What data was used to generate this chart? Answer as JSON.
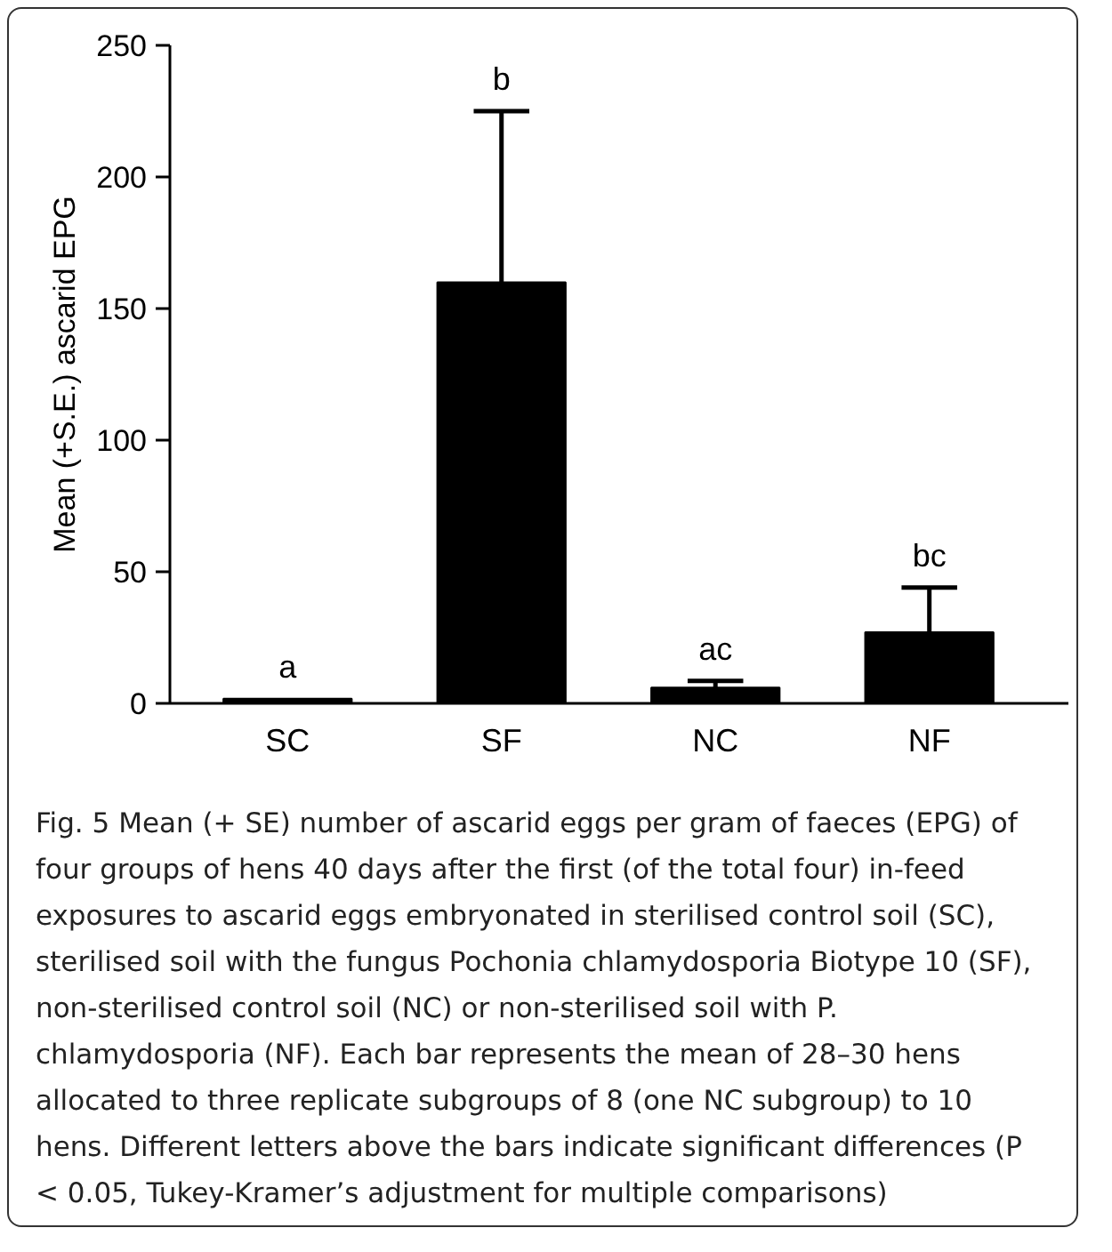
{
  "chart_data": {
    "type": "bar",
    "ylabel": "Mean (+S.E.) ascarid EPG",
    "categories": [
      "SC",
      "SF",
      "NC",
      "NF"
    ],
    "values": [
      1.8,
      160,
      6,
      27
    ],
    "errors": [
      null,
      [
        160,
        225
      ],
      [
        6,
        8.5
      ],
      [
        27,
        44
      ]
    ],
    "color": "#000000",
    "ylim": [
      0,
      250
    ],
    "yticks": [
      0,
      50,
      100,
      150,
      200,
      250
    ],
    "grid": false,
    "annotations": [
      "a",
      "b",
      "ac",
      "bc",
      "Fig. 5 Mean (+ SE) number of ascarid eggs per gram of faeces (EPG) of four groups of hens 40 days after the first (of the total four) in-feed exposures to ascarid eggs embryonated in sterilised control soil (SC), sterilised soil with the fungus Pochonia chlamydosporia Biotype 10 (SF), non-sterilised control soil (NC) or non-sterilised soil with P. chlamydosporia (NF). Each bar represents the mean of 28–30 hens allocated to three replicate subgroups of 8 (one NC subgroup) to 10 hens. Different letters above the bars indicate significant differences (P < 0.05, Tukey-Kramer’s adjustment for multiple comparisons)"
    ]
  }
}
